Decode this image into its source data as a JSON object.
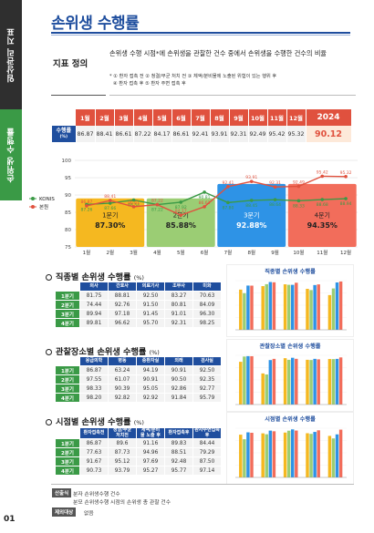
{
  "sidebar": {
    "section": "임상관리 지표",
    "indicator": "손위생 수행률",
    "page_number": "01"
  },
  "header": {
    "title": "손위생 수행률"
  },
  "definition": {
    "label": "지표 정의",
    "text": "손위생 수행 시점*에 손위생을 관찰한 건수 중에서 손위생을 수행한 건수의 비율",
    "notes_line1": "* ① 환자 접촉 전  ② 청결/무균 처치 전  ③ 체액/분비물에 노출된 위험이 있는 행위 후",
    "notes_line2": "④ 환자 접촉 후  ⑤ 환자 주변 접촉 후"
  },
  "monthly_table": {
    "row_label_1": "수행률",
    "row_label_2": "(%)",
    "months": [
      "1월",
      "2월",
      "3월",
      "4월",
      "5월",
      "6월",
      "7월",
      "8월",
      "9월",
      "10월",
      "11월",
      "12월"
    ],
    "values": [
      "86.87",
      "88.41",
      "86.61",
      "87.22",
      "84.17",
      "86.61",
      "92.41",
      "93.91",
      "92.31",
      "92.49",
      "95.42",
      "95.32"
    ],
    "year_label": "2024",
    "year_value": "90.12"
  },
  "chart_data": [
    {
      "type": "line",
      "categories": [
        "1월",
        "2월",
        "3월",
        "4월",
        "5월",
        "6월",
        "7월",
        "8월",
        "9월",
        "10월",
        "11월",
        "12월"
      ],
      "series": [
        {
          "name": "KONIS",
          "color": "#3a9a46",
          "values": [
            87.26,
            87.66,
            88.54,
            87.22,
            87.92,
            90.81,
            87.8,
            88.45,
            88.64,
            88.33,
            88.68,
            88.94
          ]
        },
        {
          "name": "본원",
          "color": "#e0513e",
          "values": [
            86.87,
            88.41,
            86.61,
            87.22,
            84.17,
            86.61,
            92.41,
            93.91,
            92.31,
            92.49,
            95.42,
            95.32
          ]
        }
      ],
      "point_labels": {
        "KONIS": [
          "87.26",
          "87.66",
          "88.54",
          "87.22",
          "87.92",
          "90.81",
          "87.80",
          "88.45",
          "88.64",
          "88.33",
          "88.68",
          "88.94"
        ],
        "본원": [
          "86.87",
          "88.41",
          "86.61",
          "87.22",
          "84.17",
          "86.61",
          "92.41",
          "93.91",
          "92.31",
          "92.49",
          "95.42",
          "95.32"
        ]
      },
      "quarters": [
        {
          "label": "1분기",
          "value": "87.30%",
          "color": "#f5b820"
        },
        {
          "label": "2분기",
          "value": "85.88%",
          "color": "#9bcd74"
        },
        {
          "label": "3분기",
          "value": "92.88%",
          "color": "#2e93e6"
        },
        {
          "label": "4분기",
          "value": "94.35%",
          "color": "#f26d5b"
        }
      ],
      "ylim": [
        75,
        100
      ],
      "yticks": [
        75,
        80,
        85,
        90,
        95,
        100
      ],
      "legend": "left",
      "grid": true
    },
    {
      "type": "bar",
      "title": "직종별 손위생 수행률",
      "categories": [
        "의사",
        "간호사",
        "의료기사",
        "조무사",
        "미화"
      ],
      "series": [
        {
          "name": "1분기",
          "values": [
            81.75,
            88.81,
            92.5,
            83.27,
            70.63
          ]
        },
        {
          "name": "2분기",
          "values": [
            74.44,
            92.76,
            91.5,
            80.81,
            84.09
          ]
        },
        {
          "name": "3분기",
          "values": [
            89.94,
            97.18,
            91.45,
            91.01,
            96.3
          ]
        },
        {
          "name": "4분기",
          "values": [
            89.81,
            96.62,
            95.7,
            92.31,
            98.25
          ]
        }
      ],
      "ylim": [
        0,
        100
      ]
    },
    {
      "type": "bar",
      "title": "관찰장소별 손위생 수행률",
      "categories": [
        "응급의학",
        "병동",
        "중환자실",
        "외래",
        "검사실"
      ],
      "series": [
        {
          "name": "1분기",
          "values": [
            86.87,
            63.24,
            94.19,
            90.91,
            92.5
          ]
        },
        {
          "name": "2분기",
          "values": [
            97.55,
            61.07,
            90.91,
            90.5,
            92.35
          ]
        },
        {
          "name": "3분기",
          "values": [
            98.33,
            90.39,
            95.05,
            92.86,
            92.77
          ]
        },
        {
          "name": "4분기",
          "values": [
            98.2,
            92.82,
            92.92,
            91.84,
            95.79
          ]
        }
      ],
      "ylim": [
        0,
        100
      ]
    },
    {
      "type": "bar",
      "title": "시점별 손위생 수행률",
      "categories": [
        "환자접촉전",
        "청결/무균처치전",
        "체액/분비물 노출 후",
        "환자접촉후",
        "환자주변접촉후"
      ],
      "series": [
        {
          "name": "1분기",
          "values": [
            86.87,
            89.6,
            91.16,
            89.83,
            84.44
          ]
        },
        {
          "name": "2분기",
          "values": [
            77.63,
            87.73,
            94.96,
            88.51,
            79.29
          ]
        },
        {
          "name": "3분기",
          "values": [
            91.67,
            95.12,
            97.69,
            92.48,
            87.5
          ]
        },
        {
          "name": "4분기",
          "values": [
            90.73,
            93.79,
            95.27,
            95.77,
            97.14
          ]
        }
      ],
      "ylim": [
        0,
        100
      ]
    }
  ],
  "sections": [
    {
      "title": "직종별 손위생 수행률",
      "unit": "(%)",
      "headers": [
        "의사",
        "간호사",
        "의료기사",
        "조무사",
        "미화"
      ],
      "rows": [
        {
          "q": "1분기",
          "cells": [
            "81.75",
            "88.81",
            "92.50",
            "83.27",
            "70.63"
          ]
        },
        {
          "q": "2분기",
          "cells": [
            "74.44",
            "92.76",
            "91.50",
            "80.81",
            "84.09"
          ]
        },
        {
          "q": "3분기",
          "cells": [
            "89.94",
            "97.18",
            "91.45",
            "91.01",
            "96.30"
          ]
        },
        {
          "q": "4분기",
          "cells": [
            "89.81",
            "96.62",
            "95.70",
            "92.31",
            "98.25"
          ]
        }
      ]
    },
    {
      "title": "관찰장소별 손위생 수행률",
      "unit": "(%)",
      "headers": [
        "응급의학",
        "병동",
        "중환자실",
        "외래",
        "검사실"
      ],
      "rows": [
        {
          "q": "1분기",
          "cells": [
            "86.87",
            "63.24",
            "94.19",
            "90.91",
            "92.50"
          ]
        },
        {
          "q": "2분기",
          "cells": [
            "97.55",
            "61.07",
            "90.91",
            "90.50",
            "92.35"
          ]
        },
        {
          "q": "3분기",
          "cells": [
            "98.33",
            "90.39",
            "95.05",
            "92.86",
            "92.77"
          ]
        },
        {
          "q": "4분기",
          "cells": [
            "98.20",
            "92.82",
            "92.92",
            "91.84",
            "95.79"
          ]
        }
      ]
    },
    {
      "title": "시점별 손위생 수행률",
      "unit": "(%)",
      "headers": [
        "환자접촉전",
        "청결/무균\n처치전",
        "체액/분비\n물 노출 후",
        "환자접촉후",
        "환자주변접촉후"
      ],
      "rows": [
        {
          "q": "1분기",
          "cells": [
            "86.87",
            "89.6",
            "91.16",
            "89.83",
            "84.44"
          ]
        },
        {
          "q": "2분기",
          "cells": [
            "77.63",
            "87.73",
            "94.96",
            "88.51",
            "79.29"
          ]
        },
        {
          "q": "3분기",
          "cells": [
            "91.67",
            "95.12",
            "97.69",
            "92.48",
            "87.50"
          ]
        },
        {
          "q": "4분기",
          "cells": [
            "90.73",
            "93.79",
            "95.27",
            "95.77",
            "97.14"
          ]
        }
      ]
    }
  ],
  "footer": {
    "tag1": "산출식",
    "numerator": "분자   손위생수행 건수",
    "denominator": "분모   손위생수행 시점의 손위생 총 관찰 건수",
    "tag2": "제외대상",
    "exclusion": "없음"
  },
  "colors": {
    "primary_blue": "#1f4e9e",
    "accent_red": "#e0513e",
    "green": "#3a9a46"
  }
}
